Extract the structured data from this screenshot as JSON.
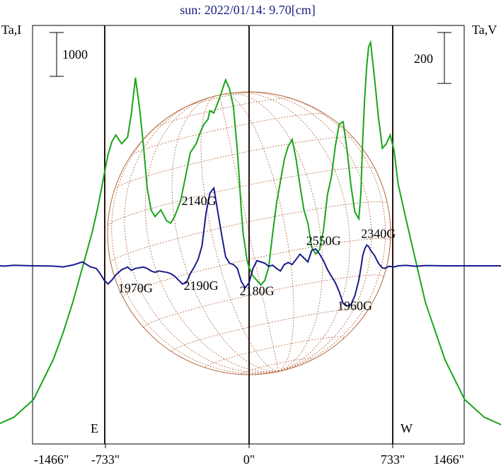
{
  "chart_data": {
    "type": "line",
    "title": "sun: 2022/01/14: 9.70[cm]",
    "left_axis_label": "Ta,I",
    "right_axis_label": "Ta,V",
    "left_scale_bar_label": "1000",
    "right_scale_bar_label": "200",
    "limb_labels": {
      "east": "E",
      "west": "W"
    },
    "x_ticks": [
      {
        "value": -1466,
        "label": "-1466\""
      },
      {
        "value": -733,
        "label": "-733\""
      },
      {
        "value": 0,
        "label": "0\""
      },
      {
        "value": 733,
        "label": "733\""
      },
      {
        "value": 1466,
        "label": "1466\""
      }
    ],
    "xlim": [
      -1466,
      1466
    ],
    "vertical_lines_x": [
      -733,
      0,
      733
    ],
    "colors": {
      "title": "#1a237e",
      "intensity": "#1aa51a",
      "polarization": "#1a1a8c",
      "grid": "#b5653a",
      "frame": "#000000",
      "vertical_lines": "#2a1410"
    },
    "series": [
      {
        "name": "Ta,I",
        "x": [
          -1466,
          -1300,
          -1200,
          -1100,
          -1000,
          -950,
          -900,
          -850,
          -800,
          -770,
          -740,
          -735,
          -720,
          -700,
          -680,
          -650,
          -620,
          -600,
          -580,
          -560,
          -540,
          -520,
          -500,
          -480,
          -450,
          -420,
          -400,
          -380,
          -350,
          -320,
          -300,
          -270,
          -250,
          -230,
          -210,
          -200,
          -180,
          -150,
          -120,
          -100,
          -80,
          -60,
          -50,
          -40,
          -30,
          -20,
          -10,
          0,
          20,
          40,
          60,
          80,
          100,
          120,
          140,
          160,
          180,
          200,
          220,
          240,
          260,
          280,
          300,
          320,
          340,
          360,
          380,
          400,
          420,
          440,
          460,
          480,
          500,
          520,
          540,
          560,
          570,
          580,
          590,
          600,
          610,
          620,
          640,
          660,
          680,
          700,
          720,
          740,
          760,
          800,
          850,
          900,
          1000,
          1100,
          1200,
          1300,
          1466
        ],
        "y": [
          50,
          200,
          400,
          800,
          1700,
          2300,
          3000,
          3800,
          4600,
          5200,
          5900,
          6000,
          6350,
          6650,
          6800,
          6600,
          6750,
          7300,
          8100,
          7450,
          6600,
          5600,
          5100,
          4950,
          5100,
          4850,
          4800,
          4950,
          5300,
          5950,
          6400,
          6600,
          6850,
          7050,
          7150,
          7350,
          7300,
          7650,
          8050,
          7850,
          7450,
          6450,
          5800,
          5100,
          4550,
          4250,
          3950,
          3800,
          3600,
          3500,
          3400,
          3500,
          3800,
          4550,
          5250,
          5750,
          6250,
          6550,
          6700,
          6250,
          5650,
          5100,
          4800,
          4250,
          4100,
          4200,
          4650,
          5450,
          5850,
          6550,
          7050,
          7100,
          6450,
          5650,
          5050,
          4900,
          5450,
          6700,
          7650,
          8350,
          8800,
          8900,
          8100,
          7200,
          6500,
          6600,
          6800,
          6450,
          5700,
          4900,
          3950,
          3000,
          1700,
          800,
          400,
          200,
          50
        ]
      },
      {
        "name": "Ta,V",
        "x": [
          -1466,
          -1350,
          -1300,
          -1250,
          -1200,
          -1100,
          -1000,
          -950,
          -900,
          -850,
          -810,
          -780,
          -760,
          -740,
          -720,
          -700,
          -680,
          -650,
          -620,
          -600,
          -580,
          -560,
          -540,
          -520,
          -500,
          -480,
          -460,
          -440,
          -420,
          -400,
          -380,
          -360,
          -340,
          -320,
          -300,
          -280,
          -260,
          -240,
          -220,
          -200,
          -180,
          -160,
          -140,
          -120,
          -100,
          -80,
          -60,
          -40,
          -20,
          0,
          20,
          40,
          60,
          80,
          100,
          120,
          140,
          160,
          180,
          200,
          220,
          240,
          260,
          280,
          300,
          320,
          340,
          360,
          380,
          400,
          420,
          440,
          460,
          480,
          500,
          520,
          540,
          560,
          570,
          580,
          590,
          600,
          610,
          620,
          630,
          640,
          650,
          660,
          670,
          680,
          690,
          700,
          710,
          720,
          740,
          760,
          800,
          850,
          900,
          1000,
          1100,
          1300,
          1466
        ],
        "y": [
          0,
          -3,
          3,
          -2,
          4,
          0,
          -2,
          -9,
          6,
          30,
          -8,
          -20,
          -60,
          -110,
          -140,
          -110,
          -70,
          -30,
          -10,
          -35,
          -20,
          -15,
          -10,
          -20,
          -40,
          -50,
          -40,
          -45,
          -50,
          -60,
          -80,
          -110,
          -140,
          -130,
          -60,
          -10,
          50,
          155,
          405,
          560,
          600,
          420,
          240,
          70,
          20,
          10,
          -20,
          -120,
          -170,
          -130,
          -20,
          40,
          30,
          20,
          -5,
          5,
          -20,
          -40,
          10,
          25,
          10,
          50,
          90,
          60,
          30,
          120,
          130,
          90,
          40,
          -30,
          -80,
          -130,
          -200,
          -290,
          -310,
          -300,
          -230,
          -110,
          -20,
          80,
          130,
          160,
          150,
          120,
          100,
          80,
          50,
          20,
          0,
          -15,
          -20,
          -15,
          -5,
          -5,
          -8,
          0,
          3,
          -3,
          2,
          0,
          0,
          0,
          0
        ]
      }
    ],
    "left_ylim": [
      0,
      10000
    ],
    "right_ylim": [
      -900,
      900
    ],
    "annotations": [
      {
        "text": "2140G",
        "x": -256,
        "y_v": 470
      },
      {
        "text": "2550G",
        "x": 380,
        "y_v": 160
      },
      {
        "text": "2340G",
        "x": 660,
        "y_v": 215
      },
      {
        "text": "1970G",
        "x": -580,
        "y_v": -205
      },
      {
        "text": "2190G",
        "x": -245,
        "y_v": -185
      },
      {
        "text": "2180G",
        "x": 40,
        "y_v": -225
      },
      {
        "text": "1960G",
        "x": 540,
        "y_v": -340
      }
    ]
  }
}
